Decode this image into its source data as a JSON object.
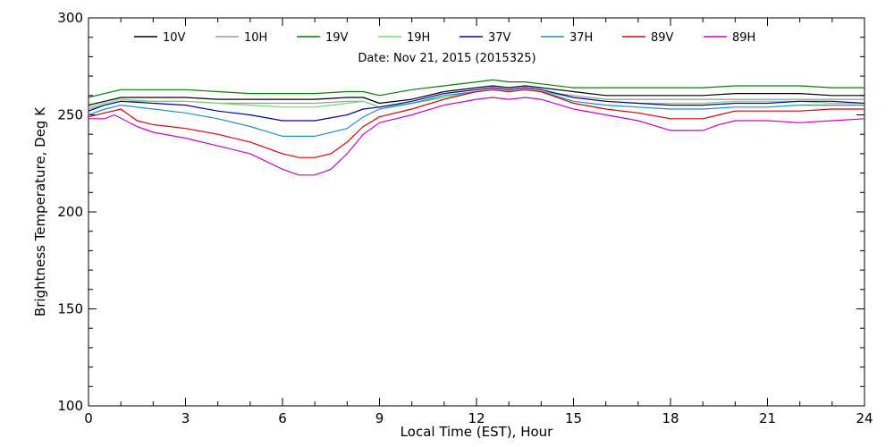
{
  "chart_data": {
    "type": "line",
    "title": "",
    "annotation": "Date: Nov 21, 2015 (2015325)",
    "xlabel": "Local Time (EST), Hour",
    "ylabel": "Brightness Temperature, Deg K",
    "xlim": [
      0,
      24
    ],
    "ylim": [
      100,
      300
    ],
    "xticks": [
      0,
      3,
      6,
      9,
      12,
      15,
      18,
      21,
      24
    ],
    "yticks": [
      100,
      150,
      200,
      250,
      300
    ],
    "grid": false,
    "legend_position": "top",
    "series": [
      {
        "name": "10V",
        "color": "#000000",
        "points": [
          [
            0,
            255
          ],
          [
            0.5,
            257
          ],
          [
            1,
            259
          ],
          [
            2,
            259
          ],
          [
            3,
            259
          ],
          [
            4,
            258
          ],
          [
            5,
            258
          ],
          [
            6,
            258
          ],
          [
            7,
            258
          ],
          [
            8,
            259
          ],
          [
            8.5,
            259
          ],
          [
            9,
            256
          ],
          [
            10,
            258
          ],
          [
            11,
            262
          ],
          [
            12,
            264
          ],
          [
            12.5,
            265
          ],
          [
            13,
            264
          ],
          [
            13.5,
            265
          ],
          [
            14,
            264
          ],
          [
            15,
            262
          ],
          [
            16,
            260
          ],
          [
            17,
            260
          ],
          [
            18,
            260
          ],
          [
            19,
            260
          ],
          [
            20,
            261
          ],
          [
            21,
            261
          ],
          [
            22,
            261
          ],
          [
            23,
            260
          ],
          [
            24,
            260
          ]
        ]
      },
      {
        "name": "10H",
        "color": "#999999",
        "points": [
          [
            0,
            253
          ],
          [
            0.5,
            255
          ],
          [
            1,
            257
          ],
          [
            2,
            257
          ],
          [
            3,
            257
          ],
          [
            4,
            256
          ],
          [
            5,
            256
          ],
          [
            6,
            256
          ],
          [
            7,
            256
          ],
          [
            8,
            257
          ],
          [
            8.5,
            257
          ],
          [
            9,
            254
          ],
          [
            10,
            256
          ],
          [
            11,
            259
          ],
          [
            12,
            262
          ],
          [
            12.5,
            263
          ],
          [
            13,
            262
          ],
          [
            13.5,
            263
          ],
          [
            14,
            262
          ],
          [
            15,
            260
          ],
          [
            16,
            258
          ],
          [
            17,
            258
          ],
          [
            18,
            258
          ],
          [
            19,
            258
          ],
          [
            20,
            258
          ],
          [
            21,
            258
          ],
          [
            22,
            258
          ],
          [
            23,
            258
          ],
          [
            24,
            258
          ]
        ]
      },
      {
        "name": "19V",
        "color": "#008000",
        "points": [
          [
            0,
            259
          ],
          [
            0.5,
            261
          ],
          [
            1,
            263
          ],
          [
            2,
            263
          ],
          [
            3,
            263
          ],
          [
            4,
            262
          ],
          [
            5,
            261
          ],
          [
            6,
            261
          ],
          [
            7,
            261
          ],
          [
            8,
            262
          ],
          [
            8.5,
            262
          ],
          [
            9,
            260
          ],
          [
            10,
            263
          ],
          [
            11,
            265
          ],
          [
            12,
            267
          ],
          [
            12.5,
            268
          ],
          [
            13,
            267
          ],
          [
            13.5,
            267
          ],
          [
            14,
            266
          ],
          [
            15,
            264
          ],
          [
            16,
            264
          ],
          [
            17,
            264
          ],
          [
            18,
            264
          ],
          [
            19,
            264
          ],
          [
            20,
            265
          ],
          [
            21,
            265
          ],
          [
            22,
            265
          ],
          [
            23,
            264
          ],
          [
            24,
            264
          ]
        ]
      },
      {
        "name": "19H",
        "color": "#66dd66",
        "points": [
          [
            0,
            254
          ],
          [
            0.5,
            256
          ],
          [
            1,
            258
          ],
          [
            2,
            257
          ],
          [
            3,
            257
          ],
          [
            4,
            256
          ],
          [
            5,
            255
          ],
          [
            6,
            254
          ],
          [
            7,
            254
          ],
          [
            8,
            256
          ],
          [
            8.5,
            257
          ],
          [
            9,
            254
          ],
          [
            10,
            256
          ],
          [
            11,
            259
          ],
          [
            12,
            262
          ],
          [
            12.5,
            263
          ],
          [
            13,
            262
          ],
          [
            13.5,
            263
          ],
          [
            14,
            262
          ],
          [
            15,
            259
          ],
          [
            16,
            257
          ],
          [
            17,
            256
          ],
          [
            18,
            256
          ],
          [
            19,
            256
          ],
          [
            20,
            257
          ],
          [
            21,
            257
          ],
          [
            22,
            257
          ],
          [
            23,
            256
          ],
          [
            24,
            256
          ]
        ]
      },
      {
        "name": "37V",
        "color": "#0000aa",
        "points": [
          [
            0,
            252
          ],
          [
            0.5,
            255
          ],
          [
            1,
            257
          ],
          [
            2,
            256
          ],
          [
            3,
            255
          ],
          [
            4,
            252
          ],
          [
            5,
            250
          ],
          [
            6,
            247
          ],
          [
            7,
            247
          ],
          [
            8,
            250
          ],
          [
            8.5,
            253
          ],
          [
            9,
            254
          ],
          [
            10,
            257
          ],
          [
            11,
            261
          ],
          [
            12,
            263
          ],
          [
            12.5,
            264
          ],
          [
            13,
            263
          ],
          [
            13.5,
            264
          ],
          [
            14,
            263
          ],
          [
            15,
            259
          ],
          [
            16,
            257
          ],
          [
            17,
            256
          ],
          [
            18,
            255
          ],
          [
            19,
            255
          ],
          [
            20,
            256
          ],
          [
            21,
            256
          ],
          [
            22,
            257
          ],
          [
            23,
            257
          ],
          [
            24,
            256
          ]
        ]
      },
      {
        "name": "37H",
        "color": "#1e90c8",
        "points": [
          [
            0,
            250
          ],
          [
            0.5,
            253
          ],
          [
            1,
            255
          ],
          [
            2,
            253
          ],
          [
            3,
            251
          ],
          [
            4,
            248
          ],
          [
            5,
            244
          ],
          [
            6,
            239
          ],
          [
            7,
            239
          ],
          [
            8,
            243
          ],
          [
            8.5,
            249
          ],
          [
            9,
            253
          ],
          [
            10,
            256
          ],
          [
            11,
            260
          ],
          [
            12,
            262
          ],
          [
            12.5,
            263
          ],
          [
            13,
            262
          ],
          [
            13.5,
            263
          ],
          [
            14,
            262
          ],
          [
            15,
            257
          ],
          [
            16,
            255
          ],
          [
            17,
            254
          ],
          [
            18,
            253
          ],
          [
            19,
            253
          ],
          [
            20,
            254
          ],
          [
            21,
            254
          ],
          [
            22,
            255
          ],
          [
            23,
            255
          ],
          [
            24,
            255
          ]
        ]
      },
      {
        "name": "89V",
        "color": "#dd0000",
        "points": [
          [
            0,
            249
          ],
          [
            0.5,
            251
          ],
          [
            1,
            253
          ],
          [
            1.5,
            247
          ],
          [
            2,
            245
          ],
          [
            3,
            243
          ],
          [
            4,
            240
          ],
          [
            5,
            236
          ],
          [
            6,
            230
          ],
          [
            6.5,
            228
          ],
          [
            7,
            228
          ],
          [
            7.5,
            230
          ],
          [
            8,
            236
          ],
          [
            8.5,
            244
          ],
          [
            9,
            249
          ],
          [
            10,
            253
          ],
          [
            11,
            258
          ],
          [
            12,
            262
          ],
          [
            12.5,
            263
          ],
          [
            13,
            262
          ],
          [
            13.5,
            263
          ],
          [
            14,
            262
          ],
          [
            15,
            256
          ],
          [
            16,
            253
          ],
          [
            17,
            251
          ],
          [
            18,
            248
          ],
          [
            19,
            248
          ],
          [
            19.5,
            250
          ],
          [
            20,
            252
          ],
          [
            21,
            252
          ],
          [
            22,
            252
          ],
          [
            23,
            253
          ],
          [
            24,
            253
          ]
        ]
      },
      {
        "name": "89H",
        "color": "#cc00cc",
        "points": [
          [
            0,
            248
          ],
          [
            0.5,
            248
          ],
          [
            0.8,
            250
          ],
          [
            1.5,
            244
          ],
          [
            2,
            241
          ],
          [
            3,
            238
          ],
          [
            4,
            234
          ],
          [
            5,
            230
          ],
          [
            6,
            222
          ],
          [
            6.5,
            219
          ],
          [
            7,
            219
          ],
          [
            7.5,
            222
          ],
          [
            8,
            230
          ],
          [
            8.5,
            240
          ],
          [
            9,
            246
          ],
          [
            10,
            250
          ],
          [
            11,
            255
          ],
          [
            12,
            258
          ],
          [
            12.5,
            259
          ],
          [
            13,
            258
          ],
          [
            13.5,
            259
          ],
          [
            14,
            258
          ],
          [
            15,
            253
          ],
          [
            16,
            250
          ],
          [
            17,
            247
          ],
          [
            18,
            242
          ],
          [
            19,
            242
          ],
          [
            19.5,
            245
          ],
          [
            20,
            247
          ],
          [
            21,
            247
          ],
          [
            22,
            246
          ],
          [
            23,
            247
          ],
          [
            24,
            248
          ]
        ]
      }
    ]
  }
}
